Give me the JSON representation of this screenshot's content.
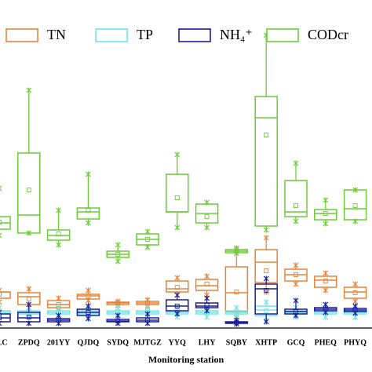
{
  "chart_data": {
    "type": "box",
    "x_label": "Monitoring station",
    "categories": [
      "CLC",
      "ZPDQ",
      "201YY",
      "QJDQ",
      "SYDQ",
      "MJTGZ",
      "YYQ",
      "LHY",
      "SQBY",
      "XHTP",
      "GCQ",
      "PHEQ",
      "PHYQ"
    ],
    "ylim": [
      0,
      398
    ],
    "series": [
      {
        "name": "TN",
        "color": "#e8843a",
        "max": [
          48,
          50,
          38,
          48,
          34,
          36,
          64,
          66,
          100,
          115,
          80,
          70,
          56
        ],
        "q3": [
          46,
          45,
          35,
          43,
          33,
          34,
          60,
          62,
          78,
          100,
          75,
          66,
          52
        ],
        "median": [
          46,
          40,
          30,
          41,
          32,
          32,
          50,
          54,
          45,
          84,
          68,
          61,
          46
        ],
        "q1": [
          38,
          30,
          26,
          37,
          30,
          30,
          46,
          48,
          21,
          58,
          60,
          52,
          38
        ],
        "min": [
          33,
          26,
          23,
          35,
          29,
          28,
          42,
          42,
          13,
          46,
          56,
          48,
          34
        ],
        "mean": [
          43,
          37,
          30,
          41,
          32,
          32,
          52,
          56,
          46,
          73,
          68,
          60,
          45
        ]
      },
      {
        "name": "TP",
        "color": "#70e6e6",
        "max": [
          26,
          26,
          26,
          26,
          26,
          26,
          26,
          26,
          26,
          33,
          26,
          26,
          26
        ],
        "q3": [
          22,
          22,
          22,
          22,
          22,
          22,
          22,
          22,
          22,
          28,
          22,
          22,
          22
        ],
        "median": [
          20,
          20,
          20,
          20,
          20,
          20,
          20,
          20,
          20,
          23,
          20,
          20,
          20
        ],
        "q1": [
          18,
          18,
          18,
          18,
          18,
          18,
          18,
          18,
          18,
          16,
          18,
          18,
          18
        ],
        "min": [
          14,
          14,
          14,
          14,
          14,
          14,
          14,
          14,
          14,
          10,
          14,
          14,
          14
        ],
        "mean": [
          20,
          20,
          20,
          20,
          20,
          20,
          20,
          20,
          20,
          22,
          20,
          20,
          20
        ]
      },
      {
        "name": "NH₄⁺",
        "color": "#1c1c9c",
        "max": [
          20,
          30,
          16,
          28,
          16,
          18,
          42,
          38,
          10,
          63,
          35,
          30,
          28
        ],
        "q3": [
          18,
          20,
          12,
          24,
          11,
          13,
          36,
          32,
          8,
          56,
          24,
          26,
          25
        ],
        "median": [
          13,
          13,
          10,
          20,
          9,
          10,
          28,
          28,
          7,
          50,
          21,
          24,
          23
        ],
        "q1": [
          8,
          8,
          8,
          16,
          8,
          8,
          22,
          26,
          6,
          18,
          18,
          22,
          21
        ],
        "min": [
          6,
          6,
          6,
          12,
          6,
          6,
          18,
          22,
          5,
          8,
          16,
          20,
          19
        ],
        "mean": [
          13,
          14,
          10,
          20,
          9,
          10,
          28,
          29,
          7,
          48,
          21,
          24,
          23
        ]
      },
      {
        "name": "CODcr",
        "color": "#6ccc38",
        "max": [
          178,
          303,
          150,
          196,
          106,
          123,
          221,
          160,
          102,
          373,
          210,
          163,
          176
        ],
        "q3": [
          142,
          223,
          125,
          153,
          98,
          120,
          196,
          158,
          100,
          295,
          188,
          151,
          176
        ],
        "median": [
          134,
          144,
          118,
          148,
          94,
          113,
          148,
          146,
          98,
          268,
          148,
          146,
          152
        ],
        "q1": [
          126,
          121,
          112,
          139,
          90,
          106,
          148,
          134,
          96,
          130,
          142,
          138,
          138
        ],
        "min": [
          118,
          121,
          106,
          134,
          85,
          103,
          128,
          128,
          95,
          125,
          136,
          133,
          136
        ],
        "mean": [
          135,
          176,
          120,
          150,
          94,
          113,
          166,
          142,
          98,
          246,
          156,
          146,
          156
        ]
      }
    ]
  }
}
